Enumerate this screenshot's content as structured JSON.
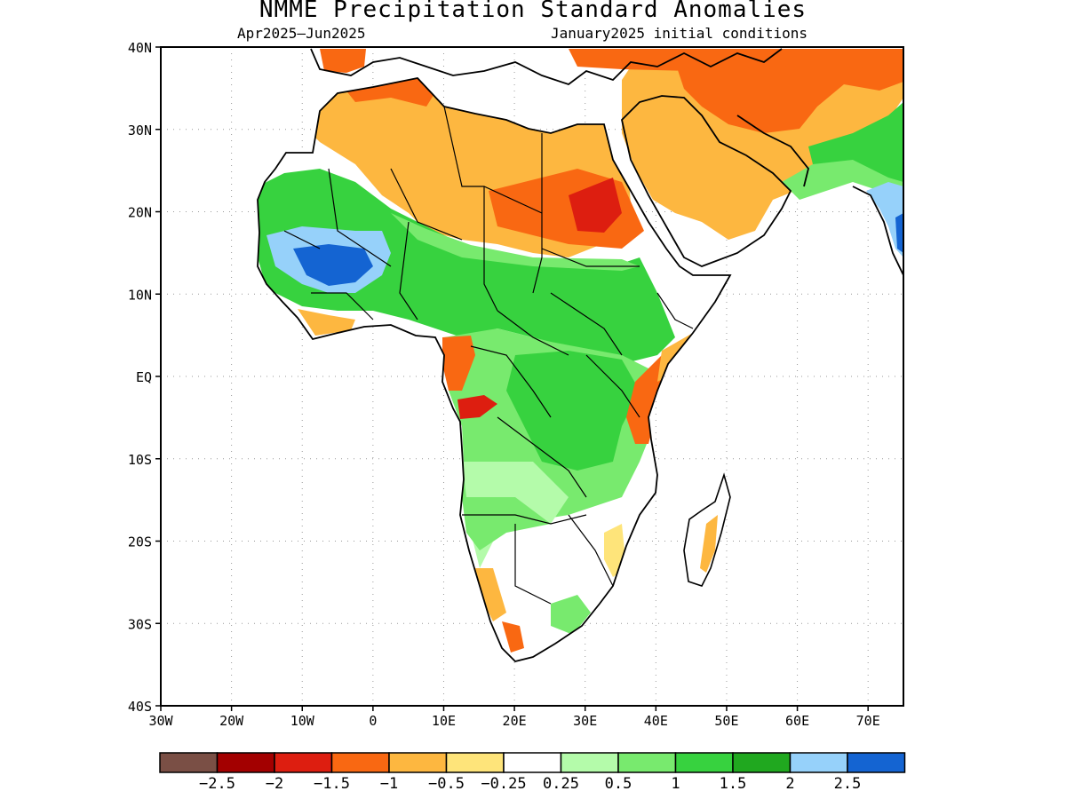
{
  "title": "NMME Precipitation Standard Anomalies",
  "subtitle_left": "Apr2025–Jun2025",
  "subtitle_right": "January2025 initial conditions",
  "map": {
    "extent": {
      "lon": [
        -30,
        75
      ],
      "lat": [
        -40,
        40
      ]
    },
    "lat_ticks": [
      {
        "v": 40,
        "t": "40N"
      },
      {
        "v": 30,
        "t": "30N"
      },
      {
        "v": 20,
        "t": "20N"
      },
      {
        "v": 10,
        "t": "10N"
      },
      {
        "v": 0,
        "t": "EQ"
      },
      {
        "v": -10,
        "t": "10S"
      },
      {
        "v": -20,
        "t": "20S"
      },
      {
        "v": -30,
        "t": "30S"
      },
      {
        "v": -40,
        "t": "40S"
      }
    ],
    "lon_ticks": [
      {
        "v": -30,
        "t": "30W"
      },
      {
        "v": -20,
        "t": "20W"
      },
      {
        "v": -10,
        "t": "10W"
      },
      {
        "v": 0,
        "t": "0"
      },
      {
        "v": 10,
        "t": "10E"
      },
      {
        "v": 20,
        "t": "20E"
      },
      {
        "v": 30,
        "t": "30E"
      },
      {
        "v": 40,
        "t": "40E"
      },
      {
        "v": 50,
        "t": "50E"
      },
      {
        "v": 60,
        "t": "60E"
      },
      {
        "v": 70,
        "t": "70E"
      }
    ],
    "grid": true
  },
  "colorbar": {
    "colors": [
      "#7a4f45",
      "#a30000",
      "#dd1e10",
      "#f96812",
      "#fdb740",
      "#fee47a",
      "#ffffff",
      "#b4fbaa",
      "#78ea6e",
      "#37d23f",
      "#20a81f",
      "#96d1fa",
      "#1464d2"
    ],
    "labels": [
      "−2.5",
      "−2",
      "−1.5",
      "−1",
      "−0.5",
      "−0.25",
      "0.25",
      "0.5",
      "1",
      "1.5",
      "2",
      "2.5"
    ]
  },
  "legend": {
    "dark_red": "#a30000",
    "red": "#dd1e10",
    "orange": "#f96812",
    "light_orange": "#fdb740",
    "yellow": "#fee47a",
    "light_green": "#b4fbaa",
    "green": "#78ea6e",
    "mid_green": "#37d23f",
    "dark_green": "#20a81f",
    "light_blue": "#96d1fa",
    "blue": "#1464d2"
  }
}
